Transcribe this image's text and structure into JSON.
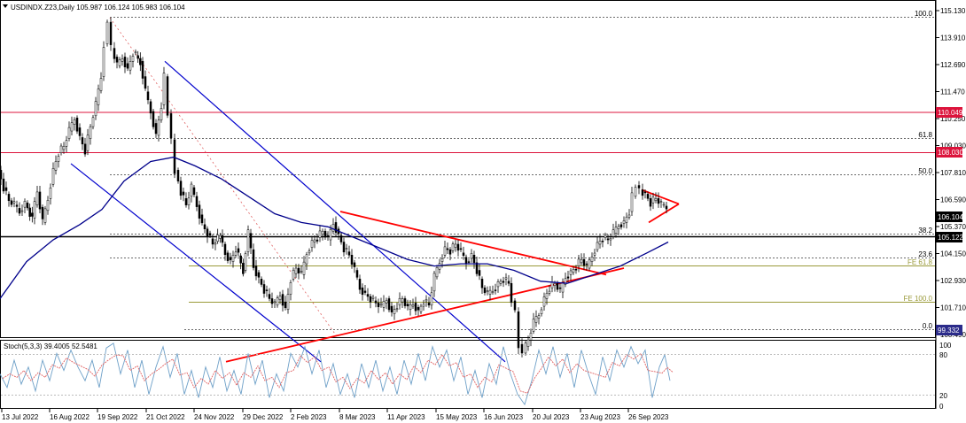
{
  "header": {
    "symbol_info": "USDINDX.Z23,Daily  105.987 106.124 105.983 106.104",
    "stoch_label": "Stoch(5,3,3) 39.4005 52.5481"
  },
  "colors": {
    "candle": "#000000",
    "ma": "#00008b",
    "channel": "#0000cd",
    "triangle": "#ff0000",
    "level_line": "#dc143c",
    "fib_line": "#6b6b6b",
    "fe_line": "#9a9a3a",
    "stoch_main": "#6ea0c8",
    "stoch_signal": "#e06060"
  },
  "axis": {
    "price_ticks": [
      "115.130",
      "113.910",
      "112.690",
      "111.470",
      "110.250",
      "109.030",
      "107.810",
      "106.590",
      "105.370",
      "104.150",
      "102.930",
      "101.710",
      "100.490"
    ],
    "stoch_ticks": [
      "100",
      "80",
      "20",
      "0"
    ],
    "date_labels": [
      "13 Jul 2022",
      "16 Aug 2022",
      "19 Sep 2022",
      "21 Oct 2022",
      "24 Nov 2022",
      "29 Dec 2022",
      "2 Feb 2023",
      "8 Mar 2023",
      "11 Apr 2023",
      "15 May 2023",
      "16 Jun 2023",
      "20 Jul 2023",
      "23 Aug 2023",
      "26 Sep 2023"
    ]
  },
  "price_boxes": {
    "level_high": "110.049",
    "level_mid": "108.030",
    "current": "106.104",
    "black_level": "105.122",
    "low": "99.332"
  },
  "fib_labels": {
    "f100": "100.0",
    "f618": "61.8",
    "f50": "50.0",
    "f382": "38.2",
    "f236": "23.6",
    "f0": "0.0",
    "fe618": "FE 61.8",
    "fe100": "FE 100.0"
  },
  "chart_data": {
    "type": "candlestick",
    "price_range": [
      99.0,
      115.5
    ],
    "stoch_range": [
      0,
      100
    ],
    "levels": {
      "red_horizontal": [
        110.049,
        108.03
      ],
      "black_horizontal": 105.122,
      "fib_retracement": {
        "100.0": 114.6,
        "61.8": 108.7,
        "50.0": 106.95,
        "38.2": 105.25,
        "23.6": 103.0,
        "0.0": 99.33
      },
      "fib_expansion": {
        "FE 61.8": 102.55,
        "FE 100.0": 100.75
      }
    },
    "key_prices": {
      "current": 106.104,
      "low": 99.332,
      "high": 114.6
    },
    "price_path": [
      [
        0,
        107.8
      ],
      [
        6,
        107.0
      ],
      [
        12,
        106.4
      ],
      [
        18,
        106.2
      ],
      [
        24,
        105.9
      ],
      [
        30,
        106.3
      ],
      [
        38,
        105.6
      ],
      [
        44,
        106.8
      ],
      [
        50,
        105.4
      ],
      [
        56,
        106.5
      ],
      [
        62,
        107.8
      ],
      [
        68,
        108.6
      ],
      [
        74,
        108.9
      ],
      [
        80,
        109.6
      ],
      [
        86,
        110.2
      ],
      [
        92,
        109.3
      ],
      [
        98,
        108.7
      ],
      [
        104,
        109.8
      ],
      [
        110,
        110.8
      ],
      [
        116,
        112.1
      ],
      [
        120,
        113.6
      ],
      [
        124,
        114.6
      ],
      [
        128,
        113.4
      ],
      [
        134,
        112.6
      ],
      [
        140,
        113.0
      ],
      [
        146,
        112.4
      ],
      [
        152,
        113.2
      ],
      [
        160,
        112.8
      ],
      [
        166,
        111.4
      ],
      [
        172,
        110.5
      ],
      [
        178,
        109.4
      ],
      [
        184,
        110.8
      ],
      [
        188,
        112.1
      ],
      [
        192,
        110.4
      ],
      [
        196,
        109.2
      ],
      [
        200,
        107.8
      ],
      [
        206,
        106.8
      ],
      [
        212,
        106.2
      ],
      [
        218,
        107.0
      ],
      [
        224,
        106.2
      ],
      [
        230,
        105.3
      ],
      [
        236,
        104.9
      ],
      [
        242,
        104.4
      ],
      [
        250,
        104.8
      ],
      [
        256,
        104.0
      ],
      [
        262,
        103.6
      ],
      [
        268,
        104.2
      ],
      [
        276,
        103.2
      ],
      [
        282,
        104.9
      ],
      [
        288,
        103.4
      ],
      [
        294,
        102.8
      ],
      [
        300,
        102.3
      ],
      [
        306,
        101.9
      ],
      [
        312,
        101.6
      ],
      [
        318,
        102.1
      ],
      [
        324,
        101.4
      ],
      [
        330,
        102.8
      ],
      [
        336,
        103.3
      ],
      [
        342,
        103.0
      ],
      [
        348,
        104.0
      ],
      [
        354,
        104.5
      ],
      [
        360,
        104.7
      ],
      [
        366,
        105.0
      ],
      [
        372,
        104.6
      ],
      [
        378,
        105.4
      ],
      [
        384,
        104.8
      ],
      [
        390,
        104.2
      ],
      [
        396,
        103.9
      ],
      [
        402,
        103.2
      ],
      [
        408,
        102.4
      ],
      [
        414,
        102.1
      ],
      [
        420,
        101.9
      ],
      [
        426,
        101.7
      ],
      [
        432,
        101.5
      ],
      [
        438,
        101.9
      ],
      [
        444,
        101.2
      ],
      [
        450,
        101.6
      ],
      [
        456,
        101.9
      ],
      [
        462,
        101.4
      ],
      [
        468,
        101.7
      ],
      [
        474,
        101.3
      ],
      [
        480,
        101.8
      ],
      [
        486,
        101.6
      ],
      [
        492,
        102.9
      ],
      [
        498,
        103.6
      ],
      [
        504,
        104.2
      ],
      [
        510,
        104.1
      ],
      [
        516,
        104.4
      ],
      [
        522,
        104.0
      ],
      [
        528,
        103.6
      ],
      [
        534,
        103.9
      ],
      [
        540,
        103.2
      ],
      [
        546,
        102.4
      ],
      [
        552,
        102.1
      ],
      [
        558,
        102.3
      ],
      [
        564,
        102.6
      ],
      [
        570,
        102.8
      ],
      [
        576,
        102.6
      ],
      [
        580,
        101.8
      ],
      [
        584,
        101.3
      ],
      [
        588,
        99.8
      ],
      [
        592,
        99.4
      ],
      [
        598,
        100.0
      ],
      [
        604,
        100.8
      ],
      [
        610,
        101.2
      ],
      [
        616,
        101.9
      ],
      [
        622,
        102.4
      ],
      [
        628,
        102.6
      ],
      [
        634,
        102.2
      ],
      [
        640,
        102.9
      ],
      [
        646,
        103.1
      ],
      [
        652,
        103.4
      ],
      [
        658,
        103.7
      ],
      [
        664,
        103.3
      ],
      [
        670,
        103.9
      ],
      [
        676,
        104.4
      ],
      [
        682,
        104.7
      ],
      [
        688,
        104.6
      ],
      [
        694,
        104.9
      ],
      [
        700,
        105.3
      ],
      [
        706,
        105.4
      ],
      [
        712,
        105.9
      ],
      [
        716,
        106.6
      ],
      [
        720,
        107.1
      ],
      [
        724,
        106.9
      ],
      [
        730,
        106.7
      ],
      [
        736,
        106.3
      ],
      [
        742,
        106.5
      ],
      [
        748,
        106.2
      ],
      [
        754,
        106.1
      ]
    ],
    "moving_average": [
      [
        0,
        101.9
      ],
      [
        30,
        103.6
      ],
      [
        60,
        104.6
      ],
      [
        90,
        105.3
      ],
      [
        115,
        106.0
      ],
      [
        140,
        107.3
      ],
      [
        170,
        108.2
      ],
      [
        196,
        108.4
      ],
      [
        220,
        108.0
      ],
      [
        250,
        107.4
      ],
      [
        280,
        106.6
      ],
      [
        310,
        105.8
      ],
      [
        340,
        105.4
      ],
      [
        370,
        105.2
      ],
      [
        400,
        104.7
      ],
      [
        430,
        104.2
      ],
      [
        460,
        103.7
      ],
      [
        490,
        103.4
      ],
      [
        520,
        103.5
      ],
      [
        550,
        103.5
      ],
      [
        580,
        103.2
      ],
      [
        610,
        102.7
      ],
      [
        640,
        102.6
      ],
      [
        670,
        103.0
      ],
      [
        700,
        103.4
      ],
      [
        730,
        104.0
      ],
      [
        754,
        104.5
      ]
    ],
    "trend_lines": [
      {
        "name": "blue channel upper",
        "from": [
          186,
          112.8
        ],
        "to": [
          570,
          99.0
        ]
      },
      {
        "name": "blue channel lower",
        "from": [
          80,
          108.1
        ],
        "to": [
          362,
          99.0
        ]
      },
      {
        "name": "red falling line",
        "from": [
          384,
          105.9
        ],
        "to": [
          684,
          103.0
        ]
      },
      {
        "name": "red rising line",
        "from": [
          255,
          99.0
        ],
        "to": [
          704,
          103.3
        ]
      },
      {
        "name": "red triangle upper",
        "from": [
          724,
          106.9
        ],
        "to": [
          766,
          106.25
        ]
      },
      {
        "name": "red triangle lower",
        "from": [
          732,
          105.4
        ],
        "to": [
          766,
          106.25
        ]
      }
    ],
    "stochastic_main": [
      [
        0,
        50
      ],
      [
        8,
        30
      ],
      [
        16,
        70
      ],
      [
        24,
        35
      ],
      [
        32,
        60
      ],
      [
        40,
        25
      ],
      [
        48,
        70
      ],
      [
        56,
        40
      ],
      [
        64,
        80
      ],
      [
        72,
        55
      ],
      [
        80,
        85
      ],
      [
        88,
        60
      ],
      [
        96,
        40
      ],
      [
        104,
        70
      ],
      [
        112,
        30
      ],
      [
        120,
        88
      ],
      [
        128,
        95
      ],
      [
        136,
        50
      ],
      [
        144,
        85
      ],
      [
        152,
        30
      ],
      [
        160,
        70
      ],
      [
        168,
        20
      ],
      [
        176,
        60
      ],
      [
        184,
        90
      ],
      [
        192,
        45
      ],
      [
        200,
        80
      ],
      [
        208,
        20
      ],
      [
        216,
        55
      ],
      [
        224,
        15
      ],
      [
        232,
        60
      ],
      [
        240,
        30
      ],
      [
        248,
        75
      ],
      [
        256,
        25
      ],
      [
        264,
        55
      ],
      [
        272,
        20
      ],
      [
        280,
        80
      ],
      [
        288,
        35
      ],
      [
        296,
        70
      ],
      [
        304,
        15
      ],
      [
        312,
        50
      ],
      [
        320,
        25
      ],
      [
        328,
        80
      ],
      [
        336,
        60
      ],
      [
        344,
        90
      ],
      [
        352,
        50
      ],
      [
        360,
        85
      ],
      [
        368,
        30
      ],
      [
        376,
        65
      ],
      [
        384,
        20
      ],
      [
        392,
        50
      ],
      [
        400,
        15
      ],
      [
        408,
        65
      ],
      [
        416,
        30
      ],
      [
        424,
        70
      ],
      [
        432,
        25
      ],
      [
        440,
        60
      ],
      [
        448,
        20
      ],
      [
        456,
        70
      ],
      [
        464,
        35
      ],
      [
        472,
        80
      ],
      [
        480,
        40
      ],
      [
        488,
        90
      ],
      [
        496,
        60
      ],
      [
        504,
        85
      ],
      [
        512,
        40
      ],
      [
        520,
        75
      ],
      [
        528,
        20
      ],
      [
        536,
        55
      ],
      [
        544,
        15
      ],
      [
        552,
        65
      ],
      [
        560,
        35
      ],
      [
        568,
        90
      ],
      [
        576,
        50
      ],
      [
        584,
        20
      ],
      [
        592,
        5
      ],
      [
        600,
        40
      ],
      [
        608,
        85
      ],
      [
        616,
        50
      ],
      [
        624,
        90
      ],
      [
        632,
        45
      ],
      [
        640,
        80
      ],
      [
        648,
        30
      ],
      [
        656,
        85
      ],
      [
        664,
        50
      ],
      [
        672,
        20
      ],
      [
        680,
        75
      ],
      [
        688,
        40
      ],
      [
        696,
        85
      ],
      [
        704,
        60
      ],
      [
        712,
        90
      ],
      [
        720,
        65
      ],
      [
        728,
        85
      ],
      [
        736,
        15
      ],
      [
        744,
        60
      ],
      [
        750,
        78
      ],
      [
        756,
        40
      ]
    ]
  }
}
